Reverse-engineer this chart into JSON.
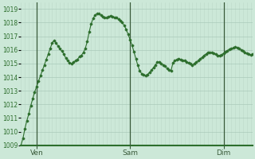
{
  "background_color": "#cce8d8",
  "plot_bg_color": "#cce8d8",
  "line_color": "#2d6e2d",
  "marker_color": "#2d6e2d",
  "grid_color_major": "#aacaba",
  "grid_color_minor": "#bcd8c8",
  "day_line_color": "#3a5a3a",
  "ylim": [
    1009,
    1019.5
  ],
  "yticks": [
    1009,
    1010,
    1011,
    1012,
    1013,
    1014,
    1015,
    1016,
    1017,
    1018,
    1019
  ],
  "xtick_labels": [
    "Ven",
    "Sam",
    "Dim"
  ],
  "xtick_positions": [
    8,
    56,
    104
  ],
  "vline_positions": [
    8,
    56,
    104
  ],
  "n_points": 120,
  "y_values": [
    1009.0,
    1009.5,
    1010.2,
    1010.8,
    1011.3,
    1011.9,
    1012.4,
    1012.9,
    1013.3,
    1013.7,
    1014.1,
    1014.5,
    1014.9,
    1015.3,
    1015.7,
    1016.1,
    1016.5,
    1016.7,
    1016.5,
    1016.3,
    1016.1,
    1015.9,
    1015.7,
    1015.4,
    1015.2,
    1015.05,
    1015.0,
    1015.1,
    1015.2,
    1015.3,
    1015.5,
    1015.6,
    1015.8,
    1016.1,
    1016.6,
    1017.3,
    1017.9,
    1018.3,
    1018.55,
    1018.65,
    1018.65,
    1018.55,
    1018.45,
    1018.35,
    1018.35,
    1018.45,
    1018.5,
    1018.45,
    1018.4,
    1018.35,
    1018.25,
    1018.15,
    1018.0,
    1017.8,
    1017.5,
    1017.15,
    1016.75,
    1016.35,
    1015.85,
    1015.35,
    1014.85,
    1014.45,
    1014.25,
    1014.15,
    1014.1,
    1014.2,
    1014.35,
    1014.5,
    1014.7,
    1014.9,
    1015.1,
    1015.1,
    1015.0,
    1014.9,
    1014.8,
    1014.65,
    1014.55,
    1014.45,
    1015.05,
    1015.2,
    1015.3,
    1015.35,
    1015.3,
    1015.25,
    1015.2,
    1015.1,
    1015.05,
    1015.0,
    1014.9,
    1015.0,
    1015.1,
    1015.2,
    1015.35,
    1015.45,
    1015.6,
    1015.7,
    1015.8,
    1015.8,
    1015.8,
    1015.75,
    1015.7,
    1015.6,
    1015.6,
    1015.65,
    1015.75,
    1015.85,
    1015.95,
    1016.05,
    1016.1,
    1016.15,
    1016.2,
    1016.15,
    1016.1,
    1016.0,
    1015.9,
    1015.8,
    1015.75,
    1015.7,
    1015.65,
    1015.7
  ]
}
